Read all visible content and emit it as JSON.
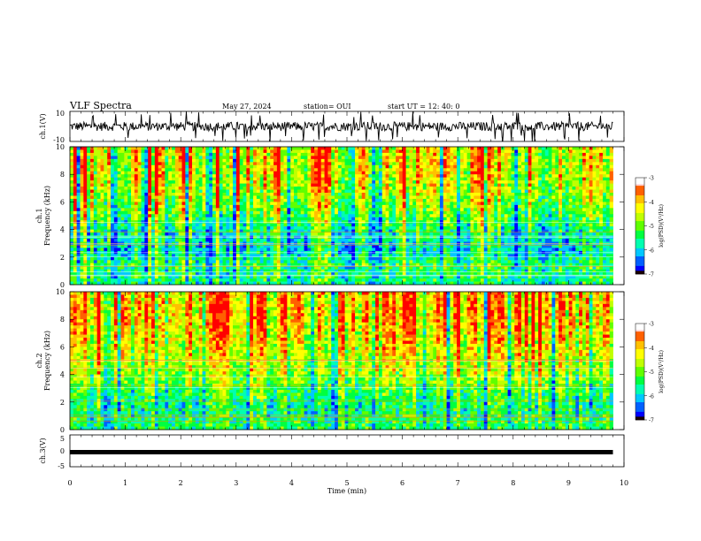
{
  "header": {
    "title": "VLF Spectra",
    "date": "May 27, 2024",
    "station": "station= OUI",
    "start": "start UT = 12: 40: 0"
  },
  "colorbar": {
    "label": "log(PSD)(V²/Hz)",
    "ticks": [
      "-3",
      "-4",
      "-5",
      "-6",
      "-7"
    ],
    "colors": [
      "#1a0000",
      "#0000ff",
      "#0060ff",
      "#00c8ff",
      "#00ffb0",
      "#00ff40",
      "#60ff00",
      "#c0ff00",
      "#ffff00",
      "#ffc000",
      "#ff6000",
      "#ff0000",
      "#ffd0d0"
    ]
  },
  "chart_data": [
    {
      "type": "line",
      "name": "ch.1 waveform",
      "ylabel": "ch.1(V)",
      "ylim": [
        -10,
        10
      ],
      "y_ticks": [
        "10",
        "-10"
      ],
      "xlim": [
        0,
        10
      ],
      "baseline_v": 0,
      "approx_amplitude_v": 3,
      "color": "#000000"
    },
    {
      "type": "heatmap",
      "name": "ch.1 spectrogram",
      "ylabel_channel": "ch.1",
      "ylabel": "Frequency (kHz)",
      "ylim": [
        0,
        10
      ],
      "y_ticks": [
        "0",
        "2",
        "4",
        "6",
        "8",
        "10"
      ],
      "xlim": [
        0,
        10
      ],
      "value_range": [
        -7,
        -3
      ],
      "data_end_min": 9.8,
      "approx_log_psd_by_freq_khz": {
        "0.5": -5.5,
        "1.5": -5.3,
        "2.5": -5.8,
        "3.5": -5.6,
        "4.5": -5.2,
        "5.5": -4.8,
        "6.5": -4.6,
        "7.5": -4.3,
        "8.5": -4.2,
        "9.5": -4.2
      }
    },
    {
      "type": "heatmap",
      "name": "ch.2 spectrogram",
      "ylabel_channel": "ch.2",
      "ylabel": "Frequency (kHz)",
      "ylim": [
        0,
        10
      ],
      "y_ticks": [
        "0",
        "2",
        "4",
        "6",
        "8",
        "10"
      ],
      "xlim": [
        0,
        10
      ],
      "value_range": [
        -7,
        -3
      ],
      "data_end_min": 9.8,
      "approx_log_psd_by_freq_khz": {
        "0.5": -5.4,
        "1.5": -5.5,
        "2.5": -5.3,
        "3.5": -4.9,
        "4.5": -4.6,
        "5.5": -4.4,
        "6.5": -4.2,
        "7.5": -4.0,
        "8.5": -3.9,
        "9.5": -3.9
      }
    },
    {
      "type": "line",
      "name": "ch.3 waveform",
      "ylabel": "ch.3(V)",
      "ylim": [
        -5,
        5
      ],
      "y_ticks": [
        "5",
        "0",
        "-5"
      ],
      "xlim": [
        0,
        10
      ],
      "baseline_v": 0,
      "color": "#000000"
    }
  ],
  "xaxis": {
    "label": "Time (min)",
    "ticks": [
      "0",
      "1",
      "2",
      "3",
      "4",
      "5",
      "6",
      "7",
      "8",
      "9",
      "10"
    ]
  }
}
